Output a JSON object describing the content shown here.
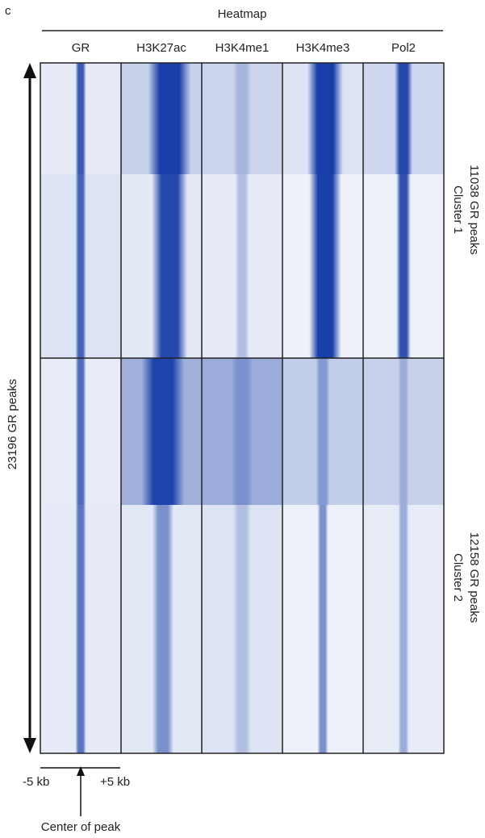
{
  "panel_letter": "c",
  "chart_data": {
    "type": "heatmap",
    "title": "Heatmap",
    "tracks": [
      "GR",
      "H3K27ac",
      "H3K4me1",
      "H3K4me3",
      "Pol2"
    ],
    "row_axis_label": "23196 GR peaks",
    "x_range_labels": [
      "-5 kb",
      "+5 kb"
    ],
    "x_center_label": "Center of peak",
    "clusters": [
      {
        "name": "Cluster 1",
        "peaks_label": "11038 GR peaks",
        "peaks": 11038
      },
      {
        "name": "Cluster 2",
        "peaks_label": "12158 GR peaks",
        "peaks": 12158
      }
    ],
    "colormap": {
      "low": "#f2f5fb",
      "high": "#1a3fa8"
    }
  }
}
